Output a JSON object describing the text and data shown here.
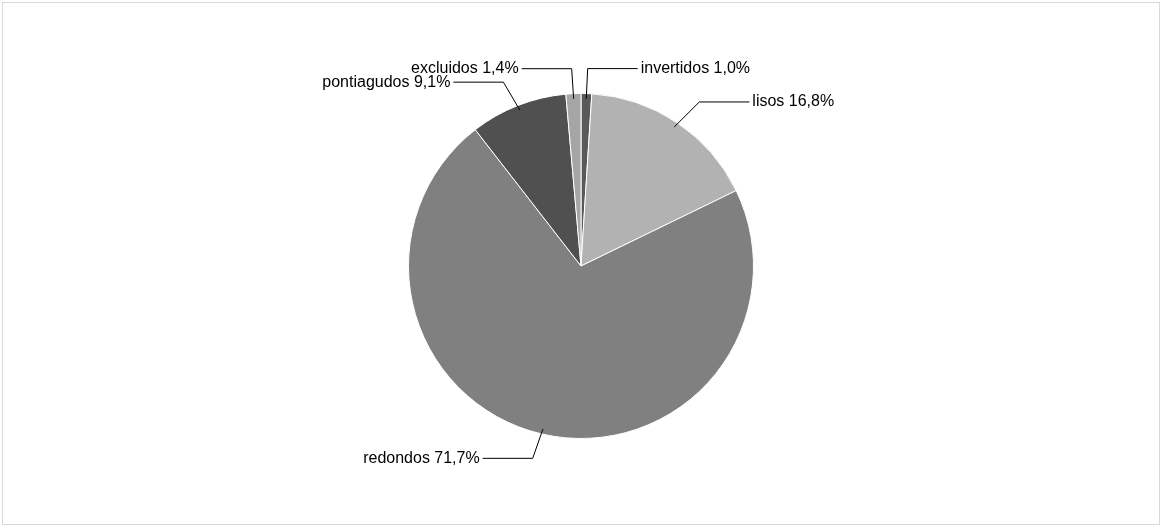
{
  "chart_data": {
    "type": "pie",
    "categories": [
      "invertidos",
      "lisos",
      "redondos",
      "pontiagudos",
      "excluidos"
    ],
    "values": [
      1.0,
      16.8,
      71.7,
      9.1,
      1.4
    ],
    "colors": [
      "#595959",
      "#b2b2b2",
      "#808080",
      "#505050",
      "#a5a5a5"
    ],
    "value_labels": [
      "1,0%",
      "16,8%",
      "71,7%",
      "9,1%",
      "1,4%"
    ],
    "legend": false
  }
}
